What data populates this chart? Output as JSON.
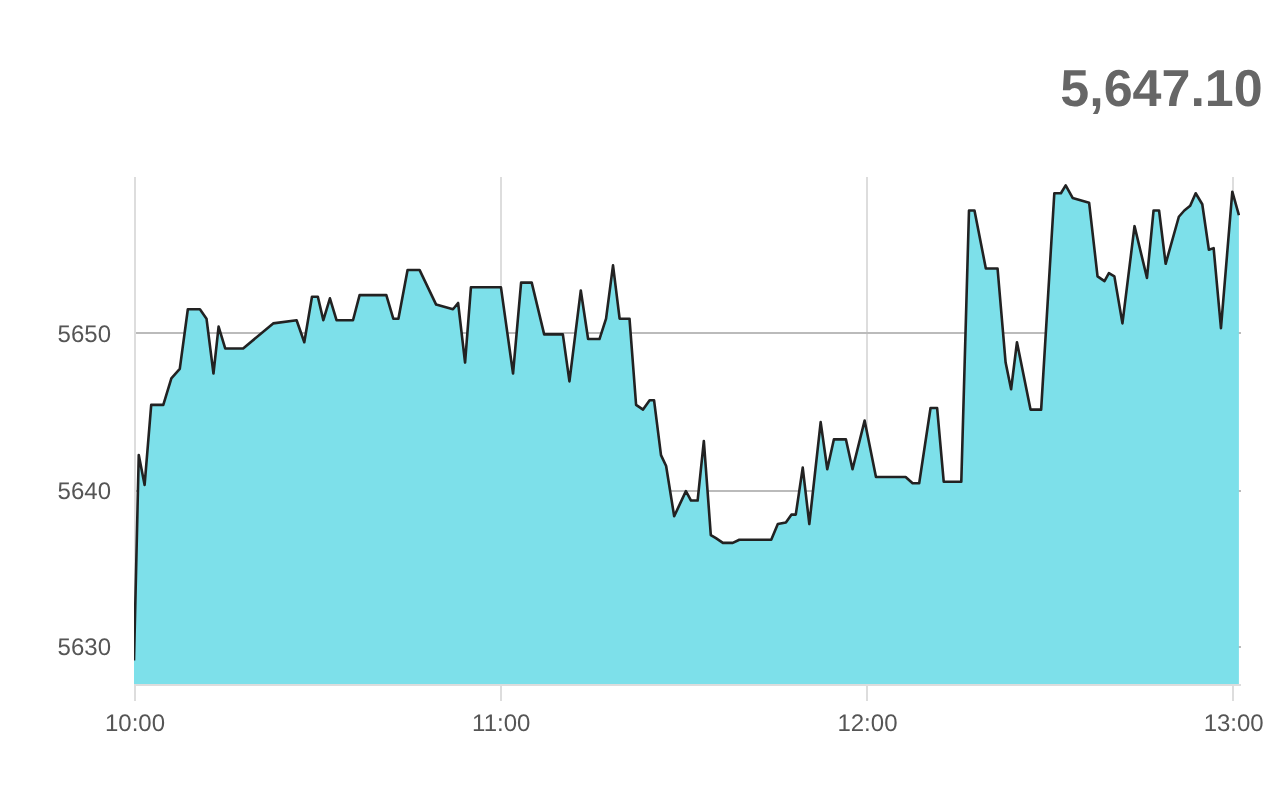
{
  "chart_data": {
    "type": "area",
    "title": "5,647.10",
    "x": [
      10,
      10.013,
      10.029,
      10.047,
      10.08,
      10.102,
      10.125,
      10.147,
      10.18,
      10.198,
      10.217,
      10.231,
      10.249,
      10.298,
      10.38,
      10.444,
      10.465,
      10.486,
      10.502,
      10.517,
      10.535,
      10.553,
      10.598,
      10.616,
      10.689,
      10.708,
      10.722,
      10.747,
      10.78,
      10.825,
      10.871,
      10.885,
      10.904,
      10.92,
      11.002,
      11.035,
      11.057,
      11.086,
      11.12,
      11.171,
      11.189,
      11.22,
      11.24,
      11.271,
      11.289,
      11.308,
      11.326,
      11.353,
      11.371,
      11.39,
      11.408,
      11.42,
      11.439,
      11.453,
      11.475,
      11.507,
      11.521,
      11.539,
      11.556,
      11.575,
      11.589,
      11.608,
      11.635,
      11.653,
      11.74,
      11.758,
      11.78,
      11.795,
      11.807,
      11.826,
      11.844,
      11.875,
      11.893,
      11.911,
      11.944,
      11.962,
      11.995,
      12.026,
      12.107,
      12.126,
      12.144,
      12.175,
      12.193,
      12.211,
      12.259,
      12.28,
      12.295,
      12.326,
      12.358,
      12.38,
      12.395,
      12.411,
      12.448,
      12.477,
      12.513,
      12.531,
      12.544,
      12.563,
      12.608,
      12.631,
      12.65,
      12.662,
      12.677,
      12.699,
      12.732,
      12.766,
      12.784,
      12.799,
      12.817,
      12.853,
      12.868,
      12.884,
      12.899,
      12.917,
      12.935,
      12.948,
      12.968,
      12.999,
      13.017
    ],
    "series": [
      {
        "color": "#7de0ea",
        "values": [
          5629.1,
          5642.2,
          5640.3,
          5645.4,
          5645.4,
          5647.1,
          5647.7,
          5651.5,
          5651.5,
          5650.9,
          5647.4,
          5650.4,
          5649.0,
          5649.0,
          5650.6,
          5650.8,
          5649.4,
          5652.3,
          5652.3,
          5650.8,
          5652.2,
          5650.8,
          5650.8,
          5652.4,
          5652.4,
          5650.9,
          5650.9,
          5654.0,
          5654.0,
          5651.8,
          5651.5,
          5651.9,
          5648.1,
          5652.9,
          5652.9,
          5647.4,
          5653.2,
          5653.2,
          5649.9,
          5649.9,
          5646.9,
          5652.7,
          5649.6,
          5649.6,
          5650.9,
          5654.3,
          5650.9,
          5650.9,
          5645.4,
          5645.1,
          5645.7,
          5645.7,
          5642.2,
          5641.5,
          5638.3,
          5639.9,
          5639.3,
          5639.3,
          5643.1,
          5637.1,
          5636.9,
          5636.6,
          5636.6,
          5636.8,
          5636.8,
          5637.8,
          5637.9,
          5638.4,
          5638.4,
          5641.4,
          5637.8,
          5644.3,
          5641.3,
          5643.2,
          5643.2,
          5641.3,
          5644.4,
          5640.8,
          5640.8,
          5640.4,
          5640.4,
          5645.2,
          5645.2,
          5640.5,
          5640.5,
          5657.8,
          5657.8,
          5654.1,
          5654.1,
          5648.1,
          5646.4,
          5649.4,
          5645.1,
          5645.1,
          5658.9,
          5658.9,
          5659.4,
          5658.6,
          5658.3,
          5653.6,
          5653.3,
          5653.8,
          5653.6,
          5650.6,
          5656.8,
          5653.5,
          5657.8,
          5657.8,
          5654.4,
          5657.4,
          5657.8,
          5658.1,
          5658.9,
          5658.2,
          5655.3,
          5655.4,
          5650.3,
          5659.0,
          5657.5
        ]
      }
    ],
    "xlim": [
      10,
      13.02
    ],
    "xticks": [
      {
        "value": 10,
        "label": "10:00"
      },
      {
        "value": 11,
        "label": "11:00"
      },
      {
        "value": 12,
        "label": "12:00"
      },
      {
        "value": 13,
        "label": "13:00"
      }
    ],
    "ylim": [
      5627.6,
      5660
    ],
    "yticks": [
      5630,
      5640,
      5650
    ],
    "grid": true
  }
}
